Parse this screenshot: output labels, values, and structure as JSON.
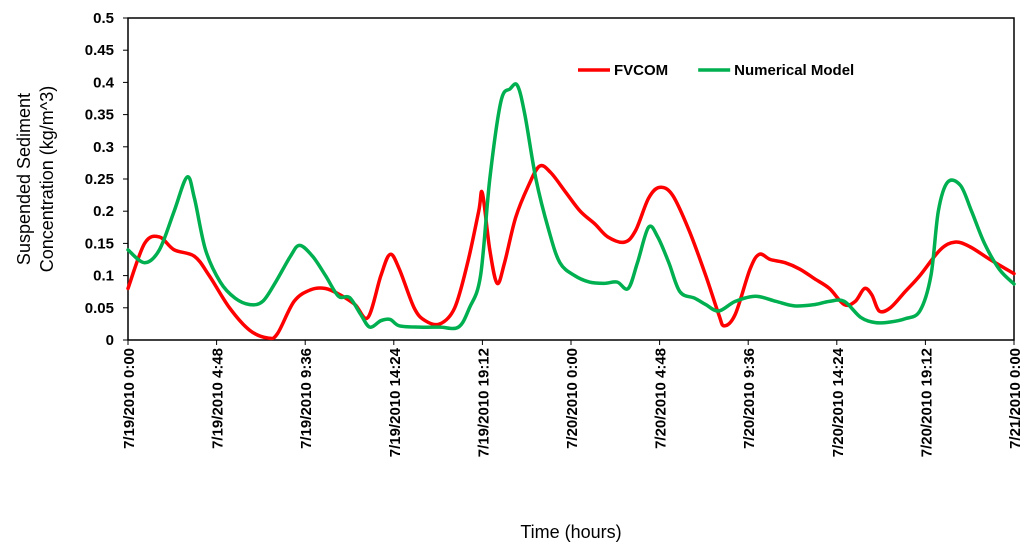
{
  "chart_data": {
    "type": "line",
    "xlabel": "Time (hours)",
    "ylabel": [
      "Suspended Sediment",
      "Concentration (kg/m^3)"
    ],
    "xlim": [
      0,
      48
    ],
    "xticks": [
      {
        "value": 0,
        "label": "7/19/2010 0:00"
      },
      {
        "value": 4.8,
        "label": "7/19/2010 4:48"
      },
      {
        "value": 9.6,
        "label": "7/19/2010 9:36"
      },
      {
        "value": 14.4,
        "label": "7/19/2010 14:24"
      },
      {
        "value": 19.2,
        "label": "7/19/2010 19:12"
      },
      {
        "value": 24,
        "label": "7/20/2010 0:00"
      },
      {
        "value": 28.8,
        "label": "7/20/2010 4:48"
      },
      {
        "value": 33.6,
        "label": "7/20/2010 9:36"
      },
      {
        "value": 38.4,
        "label": "7/20/2010 14:24"
      },
      {
        "value": 43.2,
        "label": "7/20/2010 19:12"
      },
      {
        "value": 48,
        "label": "7/21/2010 0:00"
      }
    ],
    "ylim": [
      0,
      0.5
    ],
    "yticks": [
      0,
      0.05,
      0.1,
      0.15,
      0.2,
      0.25,
      0.3,
      0.35,
      0.4,
      0.45,
      0.5
    ],
    "grid": false,
    "legend": "top-right",
    "series": [
      {
        "name": "FVCOM",
        "color": "#ff0000",
        "x": [
          0,
          0.9,
          1.7,
          2.5,
          3.6,
          4.4,
          5.5,
          6.6,
          7.6,
          8.1,
          9.0,
          9.9,
          10.7,
          11.5,
          12.3,
          13.0,
          13.7,
          14.2,
          14.7,
          15.5,
          16.1,
          16.9,
          17.7,
          18.4,
          19.0,
          19.2,
          19.6,
          20.0,
          20.4,
          21.0,
          21.7,
          22.3,
          22.9,
          23.7,
          24.5,
          25.3,
          26.0,
          26.9,
          27.5,
          28.2,
          28.8,
          29.5,
          30.4,
          31.3,
          32.0,
          32.3,
          32.9,
          33.7,
          34.2,
          34.8,
          35.6,
          36.4,
          37.2,
          38.0,
          38.8,
          39.4,
          39.9,
          40.3,
          40.7,
          41.3,
          42.1,
          42.9,
          44.0,
          44.8,
          45.6,
          46.7,
          48.0
        ],
        "values": [
          0.08,
          0.15,
          0.16,
          0.14,
          0.13,
          0.1,
          0.05,
          0.015,
          0.003,
          0.01,
          0.06,
          0.078,
          0.08,
          0.07,
          0.055,
          0.035,
          0.1,
          0.133,
          0.11,
          0.05,
          0.03,
          0.025,
          0.05,
          0.12,
          0.2,
          0.228,
          0.14,
          0.088,
          0.12,
          0.19,
          0.24,
          0.27,
          0.26,
          0.23,
          0.2,
          0.18,
          0.16,
          0.152,
          0.17,
          0.22,
          0.237,
          0.225,
          0.17,
          0.1,
          0.04,
          0.022,
          0.04,
          0.11,
          0.133,
          0.125,
          0.12,
          0.11,
          0.095,
          0.08,
          0.055,
          0.06,
          0.08,
          0.07,
          0.045,
          0.05,
          0.075,
          0.1,
          0.14,
          0.152,
          0.145,
          0.125,
          0.103
        ]
      },
      {
        "name": "Numerical Model",
        "color": "#00b050",
        "x": [
          0,
          0.9,
          1.7,
          2.5,
          3.2,
          3.6,
          4.2,
          5.0,
          5.8,
          6.6,
          7.3,
          8.0,
          8.8,
          9.3,
          10.0,
          10.7,
          11.4,
          12.0,
          12.6,
          13.1,
          13.7,
          14.2,
          14.7,
          15.8,
          16.9,
          17.9,
          18.5,
          19.1,
          19.6,
          20.2,
          20.7,
          21.1,
          21.5,
          22.1,
          22.8,
          23.4,
          24.2,
          25.0,
          25.8,
          26.5,
          27.1,
          27.6,
          28.2,
          28.7,
          29.3,
          29.9,
          30.7,
          31.3,
          32.0,
          32.9,
          34.0,
          35.1,
          36.1,
          37.2,
          38.0,
          38.8,
          39.7,
          40.5,
          41.3,
          42.1,
          42.9,
          43.5,
          43.9,
          44.4,
          45.1,
          45.7,
          46.4,
          47.2,
          48.0
        ],
        "values": [
          0.14,
          0.12,
          0.14,
          0.2,
          0.253,
          0.22,
          0.14,
          0.09,
          0.065,
          0.055,
          0.06,
          0.09,
          0.13,
          0.147,
          0.13,
          0.1,
          0.068,
          0.066,
          0.04,
          0.02,
          0.03,
          0.032,
          0.022,
          0.02,
          0.02,
          0.02,
          0.05,
          0.1,
          0.25,
          0.37,
          0.39,
          0.395,
          0.35,
          0.25,
          0.17,
          0.12,
          0.1,
          0.09,
          0.088,
          0.09,
          0.08,
          0.12,
          0.175,
          0.16,
          0.12,
          0.075,
          0.065,
          0.055,
          0.045,
          0.06,
          0.068,
          0.06,
          0.053,
          0.055,
          0.06,
          0.06,
          0.035,
          0.027,
          0.028,
          0.033,
          0.045,
          0.1,
          0.2,
          0.245,
          0.24,
          0.2,
          0.15,
          0.11,
          0.087
        ]
      }
    ]
  }
}
